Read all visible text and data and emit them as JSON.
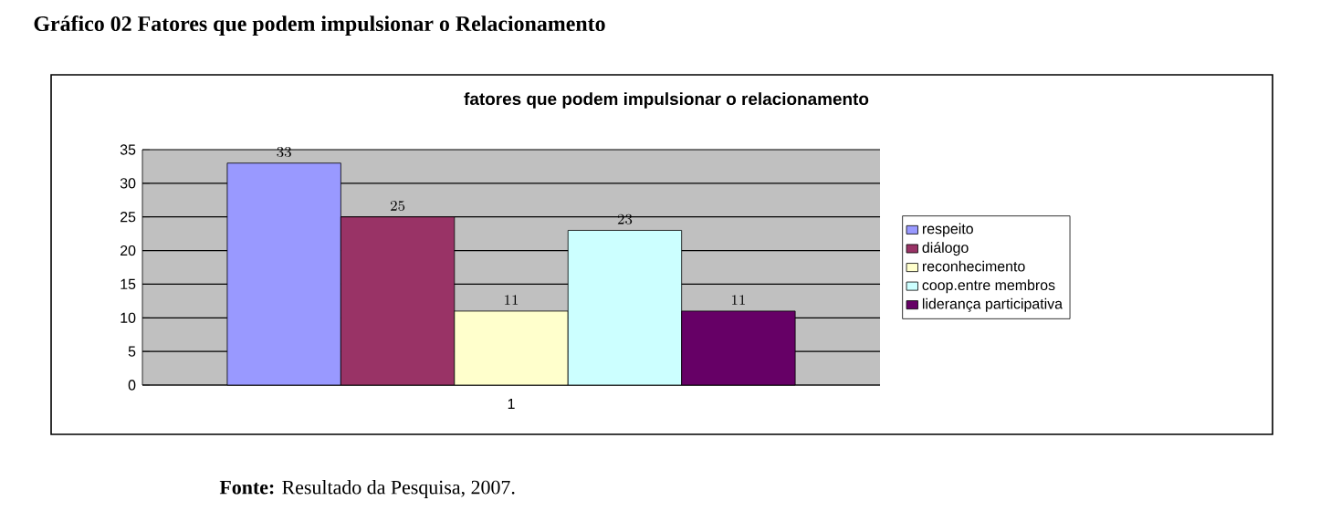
{
  "chart_data": {
    "type": "bar",
    "title": "fatores que podem impulsionar o relacionamento",
    "categories": [
      "1"
    ],
    "series": [
      {
        "name": "respeito",
        "color": "#9999ff",
        "values": [
          33
        ]
      },
      {
        "name": "diálogo",
        "color": "#993366",
        "values": [
          25
        ]
      },
      {
        "name": "reconhecimento",
        "color": "#ffffcc",
        "values": [
          11
        ]
      },
      {
        "name": "coop.entre membros",
        "color": "#ccffff",
        "values": [
          23
        ]
      },
      {
        "name": "liderança participativa",
        "color": "#660066",
        "values": [
          11
        ]
      }
    ],
    "ylim": [
      0,
      35
    ],
    "yticks": [
      0,
      5,
      10,
      15,
      20,
      25,
      30,
      35
    ],
    "grid": "y",
    "legend": "right",
    "data_labels": true,
    "annotations": [
      "Gráfico 02 Fatores que podem impulsionar o Relacionamento",
      "**Fonte:** Resultado da Pesquisa, 2007."
    ]
  }
}
